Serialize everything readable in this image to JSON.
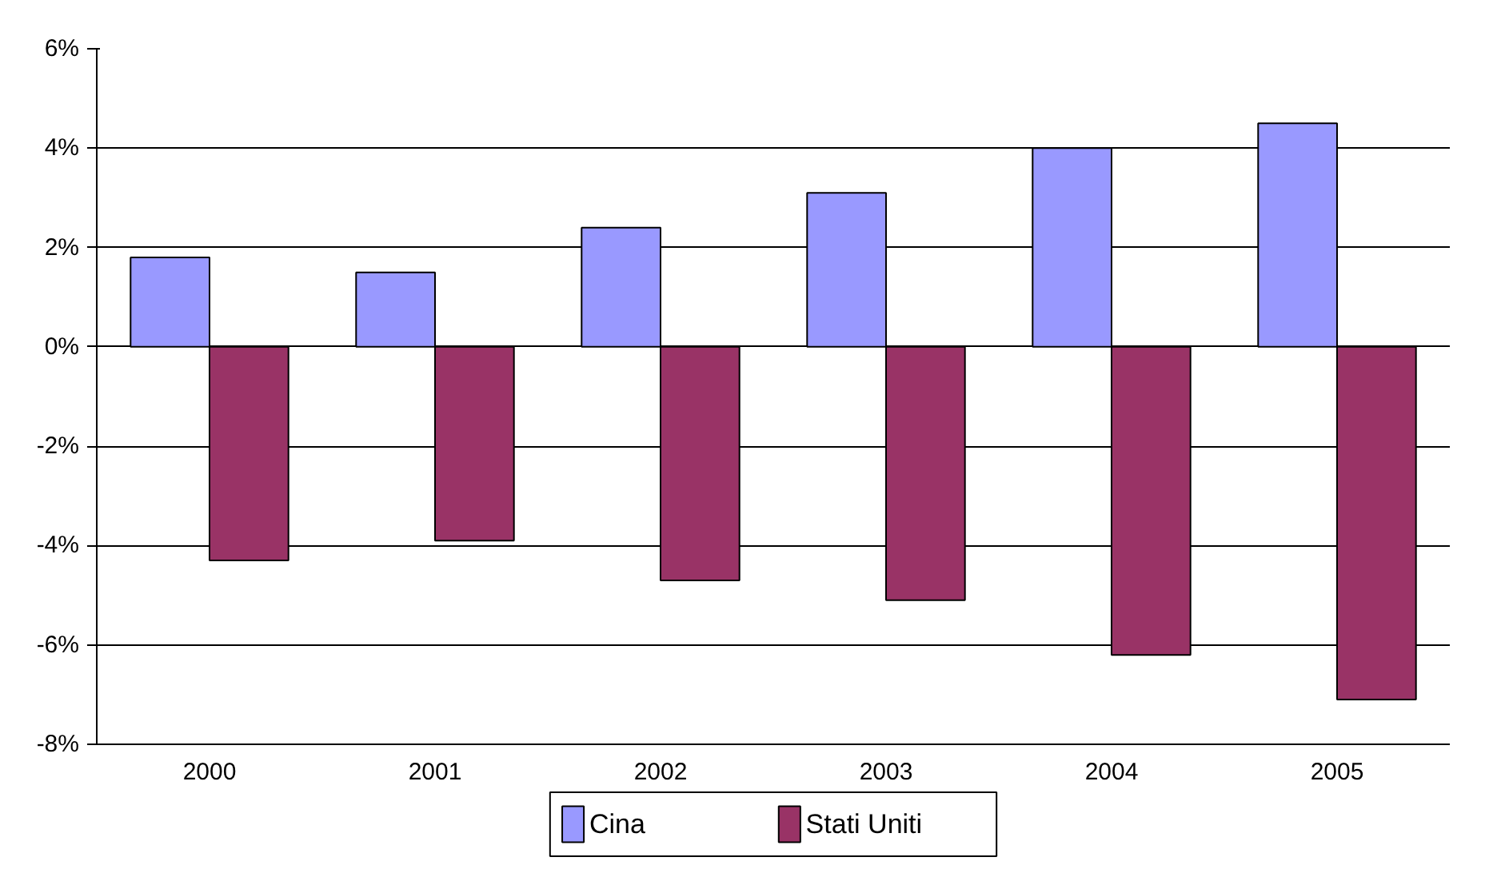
{
  "chart_data": {
    "type": "bar",
    "categories": [
      "2000",
      "2001",
      "2002",
      "2003",
      "2004",
      "2005"
    ],
    "series": [
      {
        "name": "Cina",
        "color": "#9999ff",
        "values": [
          1.8,
          1.5,
          2.4,
          3.1,
          4.0,
          4.5
        ]
      },
      {
        "name": "Stati Uniti",
        "color": "#993366",
        "values": [
          -4.3,
          -3.9,
          -4.7,
          -5.1,
          -6.2,
          -7.1
        ]
      }
    ],
    "ylim": [
      -8,
      6
    ],
    "yticks": [
      {
        "value": -8,
        "label": "-8%"
      },
      {
        "value": -6,
        "label": "-6%"
      },
      {
        "value": -4,
        "label": "-4%"
      },
      {
        "value": -2,
        "label": "-2%"
      },
      {
        "value": 0,
        "label": "0%"
      },
      {
        "value": 2,
        "label": "2%"
      },
      {
        "value": 4,
        "label": "4%"
      },
      {
        "value": 6,
        "label": "6%"
      }
    ],
    "grid": "y",
    "legend": "bottom"
  }
}
